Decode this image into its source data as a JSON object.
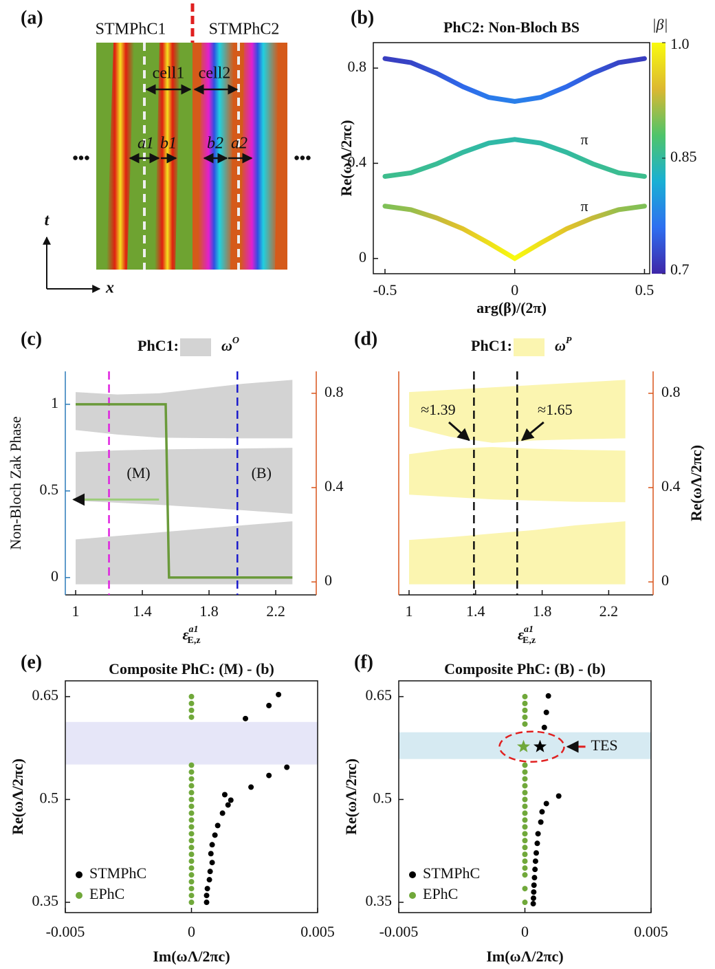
{
  "schematic": {
    "panel": "(a)",
    "left": "STMPhC1",
    "right": "STMPhC2",
    "cell1": "cell1",
    "cell2": "cell2",
    "a1": "a1",
    "b1": "b1",
    "b2": "b2",
    "a2": "a2",
    "t": "t",
    "x": "x",
    "ellipsis": "•••"
  },
  "chart_data": [
    {
      "panel": "(b)",
      "type": "line",
      "title": "PhC2: Non-Bloch BS",
      "x_label": "arg(β)/(2π)",
      "y_label": "Re(ωΛ/2πc)",
      "x": [
        -0.5,
        -0.4,
        -0.3,
        -0.2,
        -0.1,
        0,
        0.1,
        0.2,
        0.3,
        0.4,
        0.5
      ],
      "series": [
        {
          "values": [
            0.84,
            0.823,
            0.778,
            0.722,
            0.677,
            0.66,
            0.677,
            0.722,
            0.778,
            0.823,
            0.84
          ],
          "color_values": [
            0.72,
            0.725,
            0.74,
            0.755,
            0.77,
            0.775,
            0.77,
            0.755,
            0.74,
            0.725,
            0.72
          ]
        },
        {
          "values": [
            0.345,
            0.36,
            0.398,
            0.446,
            0.485,
            0.5,
            0.485,
            0.446,
            0.398,
            0.36,
            0.345
          ],
          "color_values": [
            0.86,
            0.858,
            0.855,
            0.85,
            0.846,
            0.845,
            0.846,
            0.85,
            0.855,
            0.858,
            0.86
          ]
        },
        {
          "values": [
            0.22,
            0.205,
            0.17,
            0.125,
            0.065,
            0,
            0.065,
            0.125,
            0.17,
            0.205,
            0.22
          ],
          "color_values": [
            0.9,
            0.91,
            0.93,
            0.95,
            0.975,
            1,
            0.975,
            0.95,
            0.93,
            0.91,
            0.9
          ]
        }
      ],
      "annotations": [
        "π",
        "π"
      ],
      "annotation_color": "#e8a33c",
      "xlim": [
        -0.545,
        0.52
      ],
      "ylim": [
        -0.064,
        0.907
      ],
      "xticks": [
        -0.5,
        0,
        0.5
      ],
      "yticks": [
        0,
        0.4,
        0.8
      ],
      "colorbar": {
        "label": "|β|",
        "clim": [
          0.7,
          1
        ],
        "ticks": [
          0.7,
          0.85,
          {
            "value": 1,
            "label": "1.0"
          }
        ],
        "colors": [
          "#3e26a8",
          "#2e6ff0",
          "#19b0d4",
          "#4fc46a",
          "#dcb830",
          "#f9fb0e"
        ]
      }
    },
    {
      "panel": "(c)",
      "type": "band",
      "legend": {
        "title": "PhC1:",
        "name": "ω",
        "sup": "O"
      },
      "band_color": "#d3d3d3",
      "x_label": {
        "main": "ε",
        "sup": "a1",
        "sub": "E,z"
      },
      "y_label": "Non-Bloch Zak Phase",
      "y_color": "#2a7ab8",
      "y2_color": "#d9541a",
      "x": [
        1,
        1.25,
        1.5,
        1.75,
        2,
        2.3
      ],
      "bands": [
        {
          "lower": [
            -0.01,
            -0.01,
            -0.01,
            -0.01,
            -0.01,
            -0.01
          ],
          "upper": [
            0.18,
            0.195,
            0.21,
            0.225,
            0.24,
            0.257
          ]
        },
        {
          "lower": [
            0.344,
            0.336,
            0.327,
            0.316,
            0.304,
            0.289
          ],
          "upper": [
            0.551,
            0.558,
            0.562,
            0.564,
            0.566,
            0.569
          ]
        },
        {
          "lower": [
            0.644,
            0.625,
            0.612,
            0.61,
            0.609,
            0.609
          ],
          "upper": [
            0.805,
            0.795,
            0.8,
            0.82,
            0.84,
            0.857
          ]
        }
      ],
      "line": {
        "x": [
          1,
          1.54,
          1.56,
          2.3
        ],
        "values": [
          1,
          1,
          0,
          0
        ],
        "color": "#6a9a3a"
      },
      "vlines": [
        {
          "x": 1.2,
          "color": "#e020e0",
          "label": "(M)"
        },
        {
          "x": 1.97,
          "color": "#1a1acc",
          "label": "(B)"
        }
      ],
      "xlim": [
        0.938,
        2.443
      ],
      "ylim": [
        -0.1,
        1.19
      ],
      "y2lim": [
        -0.055,
        0.893
      ],
      "xticks": [
        1,
        1.4,
        1.8,
        2.2
      ],
      "yticks": [
        0,
        0.5,
        1
      ],
      "y2ticks": [
        0,
        0.4,
        0.8
      ]
    },
    {
      "panel": "(d)",
      "type": "band",
      "legend": {
        "title": "PhC1:",
        "name": "ω",
        "sup": "P"
      },
      "band_color": "#fbf5b0",
      "x_label": {
        "main": "ε",
        "sup": "a1",
        "sub": "E,z"
      },
      "y2_label": "Re(ωΛ/2πc)",
      "y_color": "#d9541a",
      "y2_color": "#d9541a",
      "x": [
        1,
        1.25,
        1.5,
        1.75,
        2,
        2.3
      ],
      "bands": [
        {
          "lower": [
            -0.01,
            -0.01,
            -0.01,
            -0.01,
            -0.01,
            -0.01
          ],
          "upper": [
            0.178,
            0.19,
            0.205,
            0.22,
            0.24,
            0.257
          ]
        },
        {
          "lower": [
            0.37,
            0.36,
            0.35,
            0.345,
            0.34,
            0.338
          ],
          "upper": [
            0.542,
            0.565,
            0.572,
            0.565,
            0.56,
            0.557
          ]
        },
        {
          "lower": [
            0.659,
            0.615,
            0.59,
            0.6,
            0.605,
            0.609
          ],
          "upper": [
            0.805,
            0.815,
            0.825,
            0.835,
            0.845,
            0.857
          ]
        }
      ],
      "vlines": [
        {
          "x": 1.39,
          "color": "#111111",
          "label": "≈1.39"
        },
        {
          "x": 1.65,
          "color": "#111111",
          "label": "≈1.65"
        }
      ],
      "xlim": [
        0.938,
        2.467
      ],
      "y2lim": [
        -0.055,
        0.893
      ],
      "xticks": [
        1,
        1.4,
        1.8,
        2.2
      ],
      "y2ticks": [
        0,
        0.4,
        0.8
      ]
    },
    {
      "panel": "(e)",
      "type": "scatter",
      "title": "Composite PhC: (M) - (b)",
      "x_label": "Im(ωΛ/2πc)",
      "y_label": "Re(ωΛ/2πc)",
      "shade": [
        0.551,
        0.613
      ],
      "shade_color": "#e6e6f8",
      "series": [
        {
          "name": "STMPhC",
          "color": "#000000",
          "x": [
            0.00345,
            0.00307,
            0.00214,
            0.00378,
            0.00307,
            0.00236,
            0.00156,
            0.00132,
            0.00145,
            0.00123,
            0.00104,
            0.00093,
            0.00082,
            0.00077,
            0.00082,
            0.00074,
            0.00071,
            0.00063,
            0.0006,
            0.0006
          ],
          "values": [
            0.653,
            0.637,
            0.618,
            0.547,
            0.535,
            0.518,
            0.499,
            0.507,
            0.492,
            0.48,
            0.462,
            0.448,
            0.434,
            0.421,
            0.408,
            0.395,
            0.383,
            0.37,
            0.36,
            0.35
          ]
        },
        {
          "name": "EPhC",
          "color": "#70a83a",
          "x": [
            0,
            0,
            0,
            0,
            0,
            0,
            0,
            0,
            0,
            0,
            0,
            0,
            0,
            0,
            0,
            0,
            0,
            0,
            0,
            0,
            0,
            0,
            0,
            0,
            0
          ],
          "values": [
            0.65,
            0.64,
            0.63,
            0.62,
            0.55,
            0.54,
            0.53,
            0.52,
            0.51,
            0.5,
            0.49,
            0.48,
            0.47,
            0.46,
            0.45,
            0.44,
            0.43,
            0.42,
            0.41,
            0.4,
            0.39,
            0.38,
            0.37,
            0.36,
            0.35
          ]
        }
      ],
      "xlim": [
        -0.005,
        0.005
      ],
      "ylim": [
        0.335,
        0.673
      ],
      "xticks": [
        -0.005,
        0,
        0.005
      ],
      "yticks": [
        0.35,
        0.5,
        0.65
      ]
    },
    {
      "panel": "(f)",
      "type": "scatter",
      "title": "Composite PhC: (B) - (b)",
      "x_label": "Im(ωΛ/2πc)",
      "y_label": "Re(ωΛ/2πc)",
      "shade": [
        0.559,
        0.598
      ],
      "shade_color": "#d6eaf2",
      "series": [
        {
          "name": "STMPhC",
          "color": "#000000",
          "x": [
            0.00093,
            0.00085,
            0.00077,
            0.00134,
            0.00085,
            0.00068,
            0.00063,
            0.00052,
            0.00049,
            0.00045,
            0.00042,
            0.0004,
            0.00038,
            0.00036,
            0.00035,
            0.00034,
            0.00033
          ],
          "values": [
            0.651,
            0.627,
            0.605,
            0.505,
            0.494,
            0.482,
            0.467,
            0.45,
            0.436,
            0.422,
            0.41,
            0.398,
            0.386,
            0.375,
            0.365,
            0.356,
            0.348
          ]
        },
        {
          "name": "EPhC",
          "color": "#70a83a",
          "x": [
            0,
            0,
            0,
            0,
            0,
            0,
            0,
            0,
            0,
            0,
            0,
            0,
            0,
            0,
            0,
            0,
            0,
            0,
            0,
            0,
            0,
            0,
            0,
            0
          ],
          "values": [
            0.65,
            0.64,
            0.63,
            0.62,
            0.61,
            0.55,
            0.54,
            0.53,
            0.52,
            0.51,
            0.5,
            0.49,
            0.48,
            0.47,
            0.46,
            0.45,
            0.44,
            0.43,
            0.42,
            0.41,
            0.4,
            0.39,
            0.37,
            0.35
          ]
        }
      ],
      "stars": {
        "x": [
          0,
          0.0006
        ],
        "values": [
          0.577,
          0.577
        ],
        "colors": [
          "#70a83a",
          "#000000"
        ]
      },
      "annotation": "TES",
      "annotation_color": "#e02020",
      "xlim": [
        -0.005,
        0.005
      ],
      "ylim": [
        0.335,
        0.673
      ],
      "xticks": [
        -0.005,
        0,
        0.005
      ],
      "yticks": [
        0.35,
        0.5,
        0.65
      ]
    }
  ]
}
